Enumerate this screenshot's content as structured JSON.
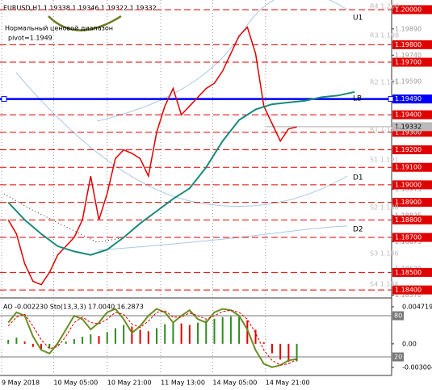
{
  "chart_data": [
    {
      "type": "line",
      "title": "EURUSD,H1  1.19338 1.19346 1.19322 1.19332",
      "annotations": [
        "Нормальный ценовой диапазон",
        "pivot=1.1949"
      ],
      "level_names": [
        "U1",
        "LB",
        "D1",
        "D2"
      ],
      "pivot_labels": [
        "R4 1.200",
        "R3 1.198",
        "R2 1.195",
        "R1 1.193",
        "S1 1.191",
        "S2 1.188",
        "S3 1.186",
        "S4 1.184"
      ],
      "xlim": [
        -1,
        46.5
      ],
      "xticks": [
        {
          "value": -0.8,
          "label": "9 May 2018"
        },
        {
          "value": 5.5,
          "label": "10 May 05:00"
        },
        {
          "value": 12,
          "label": "10 May 21:00"
        },
        {
          "value": 18.5,
          "label": "11 May 13:00"
        },
        {
          "value": 24.8,
          "label": "14 May 05:00"
        },
        {
          "value": 31.2,
          "label": "14 May 21:00"
        }
      ],
      "ylim": [
        1.18359,
        1.20032
      ],
      "yticks": [
        {
          "value": 1.1989,
          "label": "1.19890"
        },
        {
          "value": 1.1974,
          "label": "1.19740"
        },
        {
          "value": 1.1959,
          "label": "1.19590"
        },
        {
          "value": 1.18975,
          "label": "1.18975"
        },
        {
          "value": 1.18825,
          "label": "1.18825"
        },
        {
          "value": 1.18675,
          "label": "1.18675"
        },
        {
          "value": 1.1852,
          "label": "1.18520"
        },
        {
          "value": 1.1837,
          "label": "1.18370"
        }
      ],
      "levels": [
        {
          "value": 1.2,
          "label": "1.20000"
        },
        {
          "value": 1.198,
          "label": "1.19800"
        },
        {
          "value": 1.197,
          "label": "1.19700"
        },
        {
          "value": 1.194,
          "label": "1.19400"
        },
        {
          "value": 1.193,
          "label": "1.19300"
        },
        {
          "value": 1.192,
          "label": "1.19200"
        },
        {
          "value": 1.191,
          "label": "1.19100"
        },
        {
          "value": 1.19,
          "label": "1.19000"
        },
        {
          "value": 1.189,
          "label": "1.18900"
        },
        {
          "value": 1.188,
          "label": "1.18800"
        },
        {
          "value": 1.187,
          "label": "1.18700"
        },
        {
          "value": 1.185,
          "label": "1.18500"
        },
        {
          "value": 1.184,
          "label": "1.18400"
        }
      ],
      "level_color": "#e00000",
      "pivot_line": {
        "value": 1.1949,
        "label": "1.19490",
        "color": "#0000ff"
      },
      "current_price": {
        "value": 1.19332,
        "label": "1.19332"
      },
      "series": [
        {
          "color": "#e00000",
          "x": [
            0,
            1,
            2,
            3,
            4,
            5,
            6,
            7,
            8,
            9,
            10,
            11,
            12,
            13,
            14,
            15,
            16,
            17,
            18,
            19,
            20,
            21,
            22,
            23,
            24,
            25,
            26,
            27,
            28,
            29,
            30,
            31,
            32,
            33,
            34,
            35
          ],
          "values": [
            1.188,
            1.1872,
            1.1855,
            1.1845,
            1.1843,
            1.185,
            1.186,
            1.1865,
            1.187,
            1.188,
            1.1905,
            1.188,
            1.1895,
            1.1915,
            1.192,
            1.1918,
            1.1915,
            1.1905,
            1.193,
            1.1945,
            1.1955,
            1.194,
            1.1945,
            1.195,
            1.1955,
            1.1958,
            1.1965,
            1.1975,
            1.1985,
            1.199,
            1.1975,
            1.1945,
            1.1935,
            1.1925,
            1.1932,
            1.1933
          ]
        },
        {
          "color": "#1a8a7a",
          "x": [
            0,
            2,
            4,
            6,
            8,
            10,
            12,
            14,
            16,
            18,
            20,
            22,
            24,
            26,
            28,
            30,
            32,
            34,
            36,
            38,
            40,
            42
          ],
          "values": [
            1.189,
            1.188,
            1.1872,
            1.1865,
            1.1862,
            1.186,
            1.1863,
            1.187,
            1.1878,
            1.1885,
            1.1892,
            1.1898,
            1.191,
            1.1925,
            1.1937,
            1.1943,
            1.1946,
            1.1947,
            1.1948,
            1.195,
            1.1951,
            1.1953
          ]
        }
      ]
    },
    {
      "type": "oscillator",
      "title": "AO -0.002230  Sto(13,3,3) 17.0040 16.2873",
      "xlim": [
        -1,
        46.5
      ],
      "ylim": [
        -3.5,
        102.4
      ],
      "yticks": [
        80,
        20
      ],
      "y2lim": [
        -0.00372,
        0.00554
      ],
      "y2ticks": [
        0.004719,
        {
          "value": 0,
          "label": "0.00"
        },
        -0.003004
      ],
      "up_color": "#2e8b22",
      "down_color": "#e00000",
      "bars": {
        "axis": "y2",
        "values": [
          0.0005,
          0.0008,
          0.0003,
          -0.0004,
          -0.0008,
          -0.0006,
          -0.0002,
          0.0003,
          0.0006,
          0.0009,
          0.0012,
          0.001,
          0.0015,
          0.002,
          0.0024,
          0.0022,
          0.0018,
          0.0016,
          0.002,
          0.0025,
          0.0028,
          0.0026,
          0.0024,
          0.0027,
          0.003,
          0.0032,
          0.0034,
          0.0035,
          0.0036,
          0.003,
          0.0018,
          0.0002,
          -0.0012,
          -0.002,
          -0.0023,
          -0.00223
        ]
      },
      "series": [
        {
          "color": "#6b8e23",
          "values": [
            70,
            85,
            80,
            50,
            30,
            25,
            40,
            60,
            80,
            75,
            60,
            70,
            85,
            90,
            75,
            55,
            65,
            80,
            90,
            85,
            70,
            80,
            88,
            75,
            70,
            85,
            90,
            88,
            80,
            60,
            30,
            10,
            5,
            8,
            15,
            17.004
          ]
        },
        {
          "color": "#e00000",
          "values": [
            65,
            78,
            82,
            65,
            45,
            32,
            35,
            50,
            70,
            78,
            70,
            68,
            75,
            85,
            82,
            68,
            63,
            72,
            85,
            87,
            78,
            78,
            84,
            80,
            75,
            80,
            86,
            88,
            85,
            75,
            55,
            30,
            15,
            8,
            10,
            16.2873
          ]
        }
      ]
    }
  ]
}
